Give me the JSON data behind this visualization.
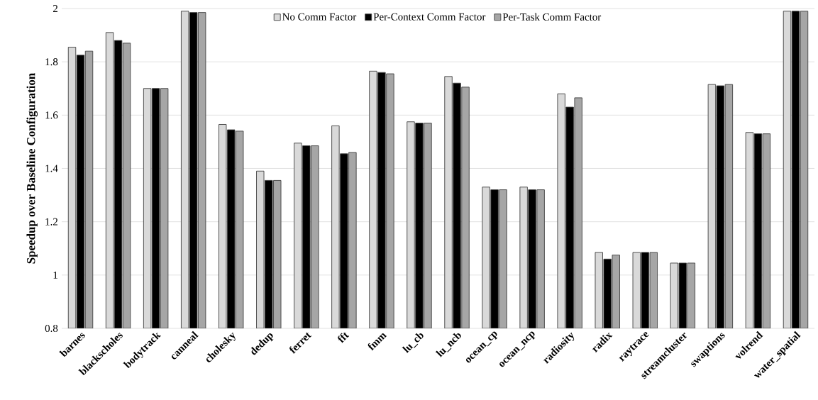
{
  "chart_data": {
    "type": "bar",
    "ylabel": "Speedup over Baseline Configuration",
    "categories": [
      "barnes",
      "blackscholes",
      "bodytrack",
      "canneal",
      "cholesky",
      "dedup",
      "ferret",
      "fft",
      "fmm",
      "lu_cb",
      "lu_ncb",
      "ocean_cp",
      "ocean_ncp",
      "radiosity",
      "radix",
      "raytrace",
      "streamcluster",
      "swaptions",
      "volrend",
      "water_spatial"
    ],
    "series": [
      {
        "name": "No Comm Factor",
        "color": "#d9d9d9",
        "values": [
          1.855,
          1.91,
          1.7,
          1.99,
          1.565,
          1.39,
          1.495,
          1.56,
          1.765,
          1.575,
          1.745,
          1.33,
          1.33,
          1.68,
          1.085,
          1.085,
          1.045,
          1.715,
          1.535,
          1.99
        ]
      },
      {
        "name": "Per-Context Comm Factor",
        "color": "#000000",
        "values": [
          1.825,
          1.88,
          1.7,
          1.985,
          1.545,
          1.355,
          1.485,
          1.455,
          1.76,
          1.57,
          1.72,
          1.32,
          1.32,
          1.63,
          1.06,
          1.085,
          1.045,
          1.71,
          1.53,
          1.99
        ]
      },
      {
        "name": "Per-Task Comm Factor",
        "color": "#a6a6a6",
        "values": [
          1.84,
          1.87,
          1.7,
          1.985,
          1.54,
          1.355,
          1.485,
          1.46,
          1.755,
          1.57,
          1.705,
          1.32,
          1.32,
          1.665,
          1.075,
          1.085,
          1.045,
          1.715,
          1.53,
          1.99
        ]
      }
    ],
    "ylim": [
      0.8,
      2
    ],
    "yticks": [
      0.8,
      1,
      1.2,
      1.4,
      1.6,
      1.8,
      2
    ],
    "grid": "y",
    "legend": "top"
  }
}
